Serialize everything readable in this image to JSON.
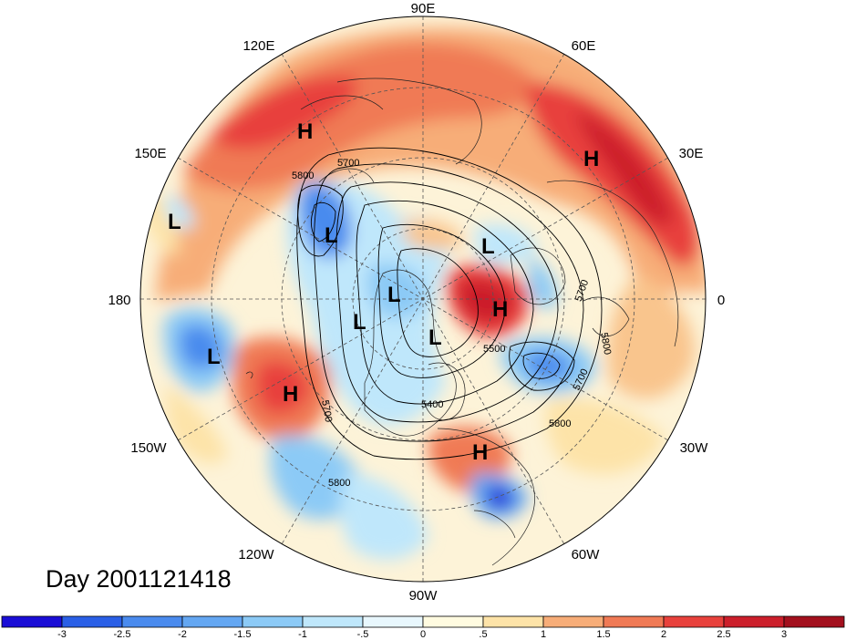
{
  "title": "Day 2001121418",
  "longitude_labels": {
    "lon_90e": "90E",
    "lon_120e": "120E",
    "lon_60e": "60E",
    "lon_150e": "150E",
    "lon_30e": "30E",
    "lon_180": "180",
    "lon_0": "0",
    "lon_150w": "150W",
    "lon_30w": "30W",
    "lon_120w": "120W",
    "lon_60w": "60W",
    "lon_90w": "90W"
  },
  "pressure_centers": [
    {
      "type": "H",
      "region": "east-siberia"
    },
    {
      "type": "H",
      "region": "russia-west"
    },
    {
      "type": "L",
      "region": "bering-sea"
    },
    {
      "type": "L",
      "region": "kamchatka"
    },
    {
      "type": "L",
      "region": "arctic-east"
    },
    {
      "type": "L",
      "region": "north-pole"
    },
    {
      "type": "H",
      "region": "greenland"
    },
    {
      "type": "L",
      "region": "beaufort"
    },
    {
      "type": "L",
      "region": "hudson-bay"
    },
    {
      "type": "L",
      "region": "north-pacific"
    },
    {
      "type": "H",
      "region": "gulf-of-alaska"
    },
    {
      "type": "H",
      "region": "western-atlantic"
    }
  ],
  "contour_labels": [
    "5800",
    "5700",
    "5700",
    "5800",
    "5700",
    "5500",
    "5400",
    "5800",
    "5700",
    "5800"
  ],
  "colorbar": {
    "ticks": [
      "-3",
      "-2.5",
      "-2",
      "-1.5",
      "-1",
      "-.5",
      "0",
      ".5",
      "1",
      "1.5",
      "2",
      "2.5",
      "3"
    ],
    "colors": [
      "#1a0ed6",
      "#2a5fe6",
      "#4a8bee",
      "#64a7f2",
      "#8ccaf6",
      "#bfe7fb",
      "#e8f7fd",
      "#fffbe0",
      "#fde3a8",
      "#f7ad78",
      "#f07a55",
      "#e8413c",
      "#cc1f2b",
      "#a3101e"
    ]
  },
  "colors": {
    "warm_strong": "#d7282c",
    "warm": "#f07a55",
    "warm_light": "#f9c58d",
    "neutral": "#fdf3d8",
    "cool_light": "#bfe7fb",
    "cool": "#64a7f2",
    "cool_strong": "#2a5fe6"
  }
}
